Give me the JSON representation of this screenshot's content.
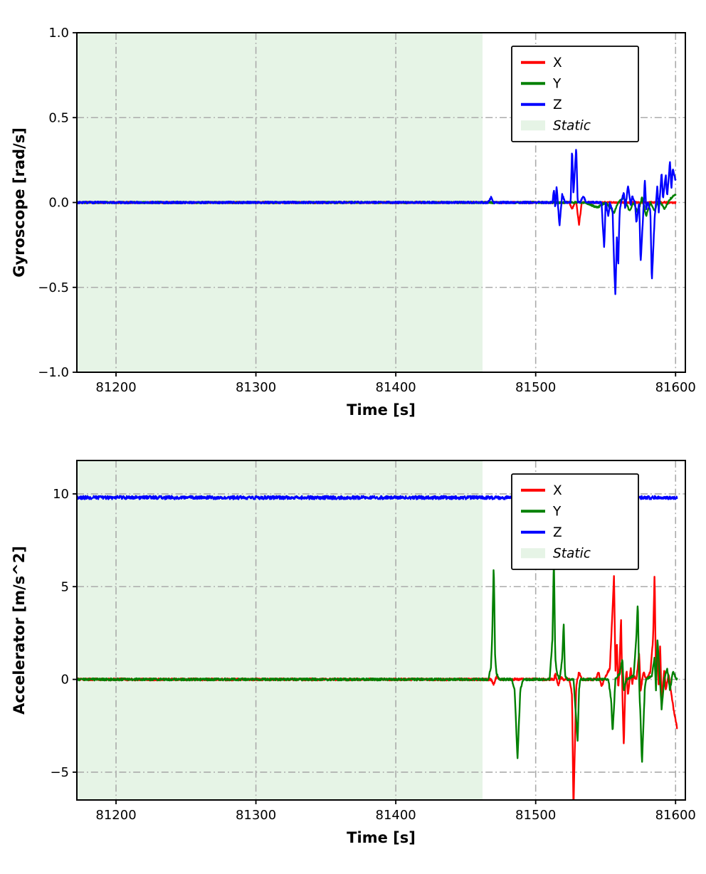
{
  "figure": {
    "background": "#ffffff",
    "axes_color": "#000000"
  },
  "chart_data": [
    {
      "type": "line",
      "title": "",
      "xlabel": "Time [s]",
      "ylabel": "Gyroscope [rad/s]",
      "xlim": [
        81172,
        81607
      ],
      "ylim": [
        -1.0,
        1.0
      ],
      "grid": {
        "on": true,
        "style": "dash-dot",
        "color": "#ababab"
      },
      "xticks": [
        {
          "v": 81200,
          "label": "81200"
        },
        {
          "v": 81300,
          "label": "81300"
        },
        {
          "v": 81400,
          "label": "81400"
        },
        {
          "v": 81500,
          "label": "81500"
        },
        {
          "v": 81600,
          "label": "81600"
        }
      ],
      "yticks": [
        {
          "v": 1.0,
          "label": "1.0"
        },
        {
          "v": 0.5,
          "label": "0.5"
        },
        {
          "v": 0.0,
          "label": "0.0"
        },
        {
          "v": -0.5,
          "label": "−0.5"
        },
        {
          "v": -1.0,
          "label": "−1.0"
        }
      ],
      "static_region": {
        "label": "Static",
        "x_start": 81172,
        "x_end": 81462,
        "color": "#e6f4e6"
      },
      "legend": {
        "position": "upper-right",
        "entries": [
          {
            "label": "X",
            "color": "#ff0000",
            "type": "line",
            "italic": false
          },
          {
            "label": "Y",
            "color": "#008000",
            "type": "line",
            "italic": false
          },
          {
            "label": "Z",
            "color": "#0000ff",
            "type": "line",
            "italic": false
          },
          {
            "label": "Static",
            "color": "#e6f4e6",
            "type": "patch",
            "italic": true
          }
        ]
      },
      "series": [
        {
          "name": "X",
          "color": "#ff0000",
          "noise": 0.005,
          "keypoints": [
            [
              81172,
              0
            ],
            [
              81524,
              0
            ],
            [
              81526,
              -0.04
            ],
            [
              81528,
              0
            ],
            [
              81529,
              0
            ],
            [
              81531,
              -0.13
            ],
            [
              81533,
              0
            ],
            [
              81600,
              0
            ]
          ]
        },
        {
          "name": "Y",
          "color": "#008000",
          "noise": 0.005,
          "keypoints": [
            [
              81172,
              0
            ],
            [
              81535,
              0
            ],
            [
              81544,
              -0.03
            ],
            [
              81550,
              0
            ],
            [
              81556,
              -0.06
            ],
            [
              81559,
              0
            ],
            [
              81563,
              0.03
            ],
            [
              81567,
              -0.05
            ],
            [
              81570,
              0
            ],
            [
              81573,
              -0.06
            ],
            [
              81576,
              0.03
            ],
            [
              81579,
              -0.08
            ],
            [
              81582,
              0
            ],
            [
              81585,
              -0.05
            ],
            [
              81588,
              0.02
            ],
            [
              81592,
              -0.04
            ],
            [
              81596,
              0.02
            ],
            [
              81600,
              0.05
            ]
          ]
        },
        {
          "name": "Z",
          "color": "#0000ff",
          "noise": 0.006,
          "keypoints": [
            [
              81172,
              0
            ],
            [
              81466,
              0
            ],
            [
              81468,
              0.03
            ],
            [
              81470,
              0
            ],
            [
              81505,
              0
            ],
            [
              81512,
              0
            ],
            [
              81513,
              0.08
            ],
            [
              81514,
              -0.04
            ],
            [
              81515,
              0.1
            ],
            [
              81517,
              -0.14
            ],
            [
              81519,
              0.05
            ],
            [
              81521,
              0
            ],
            [
              81525,
              0
            ],
            [
              81526,
              0.32
            ],
            [
              81527,
              0.05
            ],
            [
              81529,
              0.33
            ],
            [
              81530,
              0
            ],
            [
              81532,
              0
            ],
            [
              81534,
              0.04
            ],
            [
              81536,
              0
            ],
            [
              81547,
              0
            ],
            [
              81549,
              -0.27
            ],
            [
              81550,
              0
            ],
            [
              81552,
              -0.08
            ],
            [
              81553,
              0
            ],
            [
              81555,
              -0.05
            ],
            [
              81556,
              -0.35
            ],
            [
              81557,
              -0.56
            ],
            [
              81558,
              -0.2
            ],
            [
              81559,
              -0.38
            ],
            [
              81560,
              -0.05
            ],
            [
              81561,
              0
            ],
            [
              81563,
              0.06
            ],
            [
              81564,
              -0.04
            ],
            [
              81566,
              0.1
            ],
            [
              81568,
              -0.02
            ],
            [
              81569,
              0.04
            ],
            [
              81571,
              0
            ],
            [
              81572,
              -0.12
            ],
            [
              81574,
              0
            ],
            [
              81575,
              -0.36
            ],
            [
              81577,
              -0.05
            ],
            [
              81578,
              0.14
            ],
            [
              81579,
              -0.04
            ],
            [
              81580,
              0
            ],
            [
              81582,
              -0.05
            ],
            [
              81583,
              -0.47
            ],
            [
              81585,
              -0.1
            ],
            [
              81586,
              0
            ],
            [
              81587,
              0.1
            ],
            [
              81588,
              -0.06
            ],
            [
              81590,
              0.18
            ],
            [
              81591,
              0.02
            ],
            [
              81593,
              0.16
            ],
            [
              81594,
              0.04
            ],
            [
              81596,
              0.24
            ],
            [
              81597,
              0.08
            ],
            [
              81598,
              0.2
            ],
            [
              81600,
              0.13
            ]
          ]
        }
      ]
    },
    {
      "type": "line",
      "title": "",
      "xlabel": "Time [s]",
      "ylabel": "Accelerator [m/s^2]",
      "xlim": [
        81172,
        81607
      ],
      "ylim": [
        -6.5,
        11.8
      ],
      "grid": {
        "on": true,
        "style": "dash-dot",
        "color": "#ababab"
      },
      "xticks": [
        {
          "v": 81200,
          "label": "81200"
        },
        {
          "v": 81300,
          "label": "81300"
        },
        {
          "v": 81400,
          "label": "81400"
        },
        {
          "v": 81500,
          "label": "81500"
        },
        {
          "v": 81600,
          "label": "81600"
        }
      ],
      "yticks": [
        {
          "v": 10,
          "label": "10"
        },
        {
          "v": 5,
          "label": "5"
        },
        {
          "v": 0,
          "label": "0"
        },
        {
          "v": -5,
          "label": "−5"
        }
      ],
      "static_region": {
        "label": "Static",
        "x_start": 81172,
        "x_end": 81462,
        "color": "#e6f4e6"
      },
      "legend": {
        "position": "upper-right",
        "entries": [
          {
            "label": "X",
            "color": "#ff0000",
            "type": "line",
            "italic": false
          },
          {
            "label": "Y",
            "color": "#008000",
            "type": "line",
            "italic": false
          },
          {
            "label": "Z",
            "color": "#0000ff",
            "type": "line",
            "italic": false
          },
          {
            "label": "Static",
            "color": "#e6f4e6",
            "type": "patch",
            "italic": true
          }
        ]
      },
      "series": [
        {
          "name": "X",
          "color": "#ff0000",
          "noise": 0.06,
          "keypoints": [
            [
              81172,
              0
            ],
            [
              81468,
              0
            ],
            [
              81470,
              -0.25
            ],
            [
              81472,
              0.15
            ],
            [
              81474,
              0
            ],
            [
              81513,
              0
            ],
            [
              81514,
              0.3
            ],
            [
              81516,
              -0.35
            ],
            [
              81518,
              0.1
            ],
            [
              81520,
              0
            ],
            [
              81524,
              0
            ],
            [
              81526,
              -0.8
            ],
            [
              81527,
              -7
            ],
            [
              81529,
              -0.3
            ],
            [
              81531,
              0.4
            ],
            [
              81533,
              0
            ],
            [
              81543,
              0
            ],
            [
              81545,
              0.4
            ],
            [
              81547,
              -0.4
            ],
            [
              81549,
              0
            ],
            [
              81553,
              0.6
            ],
            [
              81554,
              2.2
            ],
            [
              81556,
              5.6
            ],
            [
              81557,
              0.4
            ],
            [
              81558,
              2.1
            ],
            [
              81559,
              -0.6
            ],
            [
              81560,
              0.8
            ],
            [
              81561,
              3.4
            ],
            [
              81562,
              -0.8
            ],
            [
              81563,
              -3.6
            ],
            [
              81564,
              -0.4
            ],
            [
              81565,
              0.5
            ],
            [
              81566,
              -0.9
            ],
            [
              81568,
              0.6
            ],
            [
              81569,
              -0.3
            ],
            [
              81570,
              0.2
            ],
            [
              81572,
              0
            ],
            [
              81574,
              1.4
            ],
            [
              81575,
              -0.6
            ],
            [
              81577,
              0.4
            ],
            [
              81579,
              0
            ],
            [
              81582,
              0.4
            ],
            [
              81584,
              2.3
            ],
            [
              81585,
              5.8
            ],
            [
              81586,
              -0.2
            ],
            [
              81587,
              1.6
            ],
            [
              81588,
              -0.6
            ],
            [
              81589,
              1.9
            ],
            [
              81590,
              -1.2
            ],
            [
              81592,
              0.6
            ],
            [
              81593,
              -0.6
            ],
            [
              81595,
              0.3
            ],
            [
              81597,
              -0.8
            ],
            [
              81599,
              -1.8
            ],
            [
              81601,
              -2.6
            ]
          ]
        },
        {
          "name": "Y",
          "color": "#008000",
          "noise": 0.06,
          "keypoints": [
            [
              81172,
              0
            ],
            [
              81466,
              0
            ],
            [
              81468,
              0.6
            ],
            [
              81469,
              2.5
            ],
            [
              81470,
              6.3
            ],
            [
              81471,
              1.2
            ],
            [
              81472,
              0.3
            ],
            [
              81474,
              0
            ],
            [
              81483,
              0
            ],
            [
              81485,
              -0.6
            ],
            [
              81487,
              -4.3
            ],
            [
              81489,
              -0.6
            ],
            [
              81491,
              0
            ],
            [
              81510,
              0
            ],
            [
              81512,
              2.2
            ],
            [
              81513,
              6.6
            ],
            [
              81514,
              1.2
            ],
            [
              81515,
              0.4
            ],
            [
              81517,
              0
            ],
            [
              81519,
              1.1
            ],
            [
              81520,
              3.0
            ],
            [
              81521,
              0.2
            ],
            [
              81523,
              0
            ],
            [
              81527,
              0
            ],
            [
              81529,
              -2.2
            ],
            [
              81530,
              -3.4
            ],
            [
              81531,
              -0.5
            ],
            [
              81532,
              0
            ],
            [
              81552,
              0
            ],
            [
              81554,
              -1.2
            ],
            [
              81555,
              -2.9
            ],
            [
              81557,
              0
            ],
            [
              81560,
              0.3
            ],
            [
              81562,
              1.1
            ],
            [
              81563,
              -0.6
            ],
            [
              81565,
              0
            ],
            [
              81570,
              0.2
            ],
            [
              81572,
              2.3
            ],
            [
              81573,
              4.2
            ],
            [
              81574,
              -0.3
            ],
            [
              81575,
              -2.2
            ],
            [
              81576,
              -4.6
            ],
            [
              81578,
              -0.5
            ],
            [
              81579,
              0
            ],
            [
              81583,
              0.2
            ],
            [
              81585,
              1.2
            ],
            [
              81586,
              -0.6
            ],
            [
              81587,
              2.2
            ],
            [
              81589,
              -0.2
            ],
            [
              81590,
              -1.6
            ],
            [
              81592,
              0
            ],
            [
              81594,
              0.6
            ],
            [
              81596,
              -0.6
            ],
            [
              81598,
              0.4
            ],
            [
              81601,
              0
            ]
          ]
        },
        {
          "name": "Z",
          "color": "#0000ff",
          "noise": 0.09,
          "keypoints": [
            [
              81172,
              9.8
            ],
            [
              81601,
              9.8
            ]
          ]
        }
      ]
    }
  ]
}
